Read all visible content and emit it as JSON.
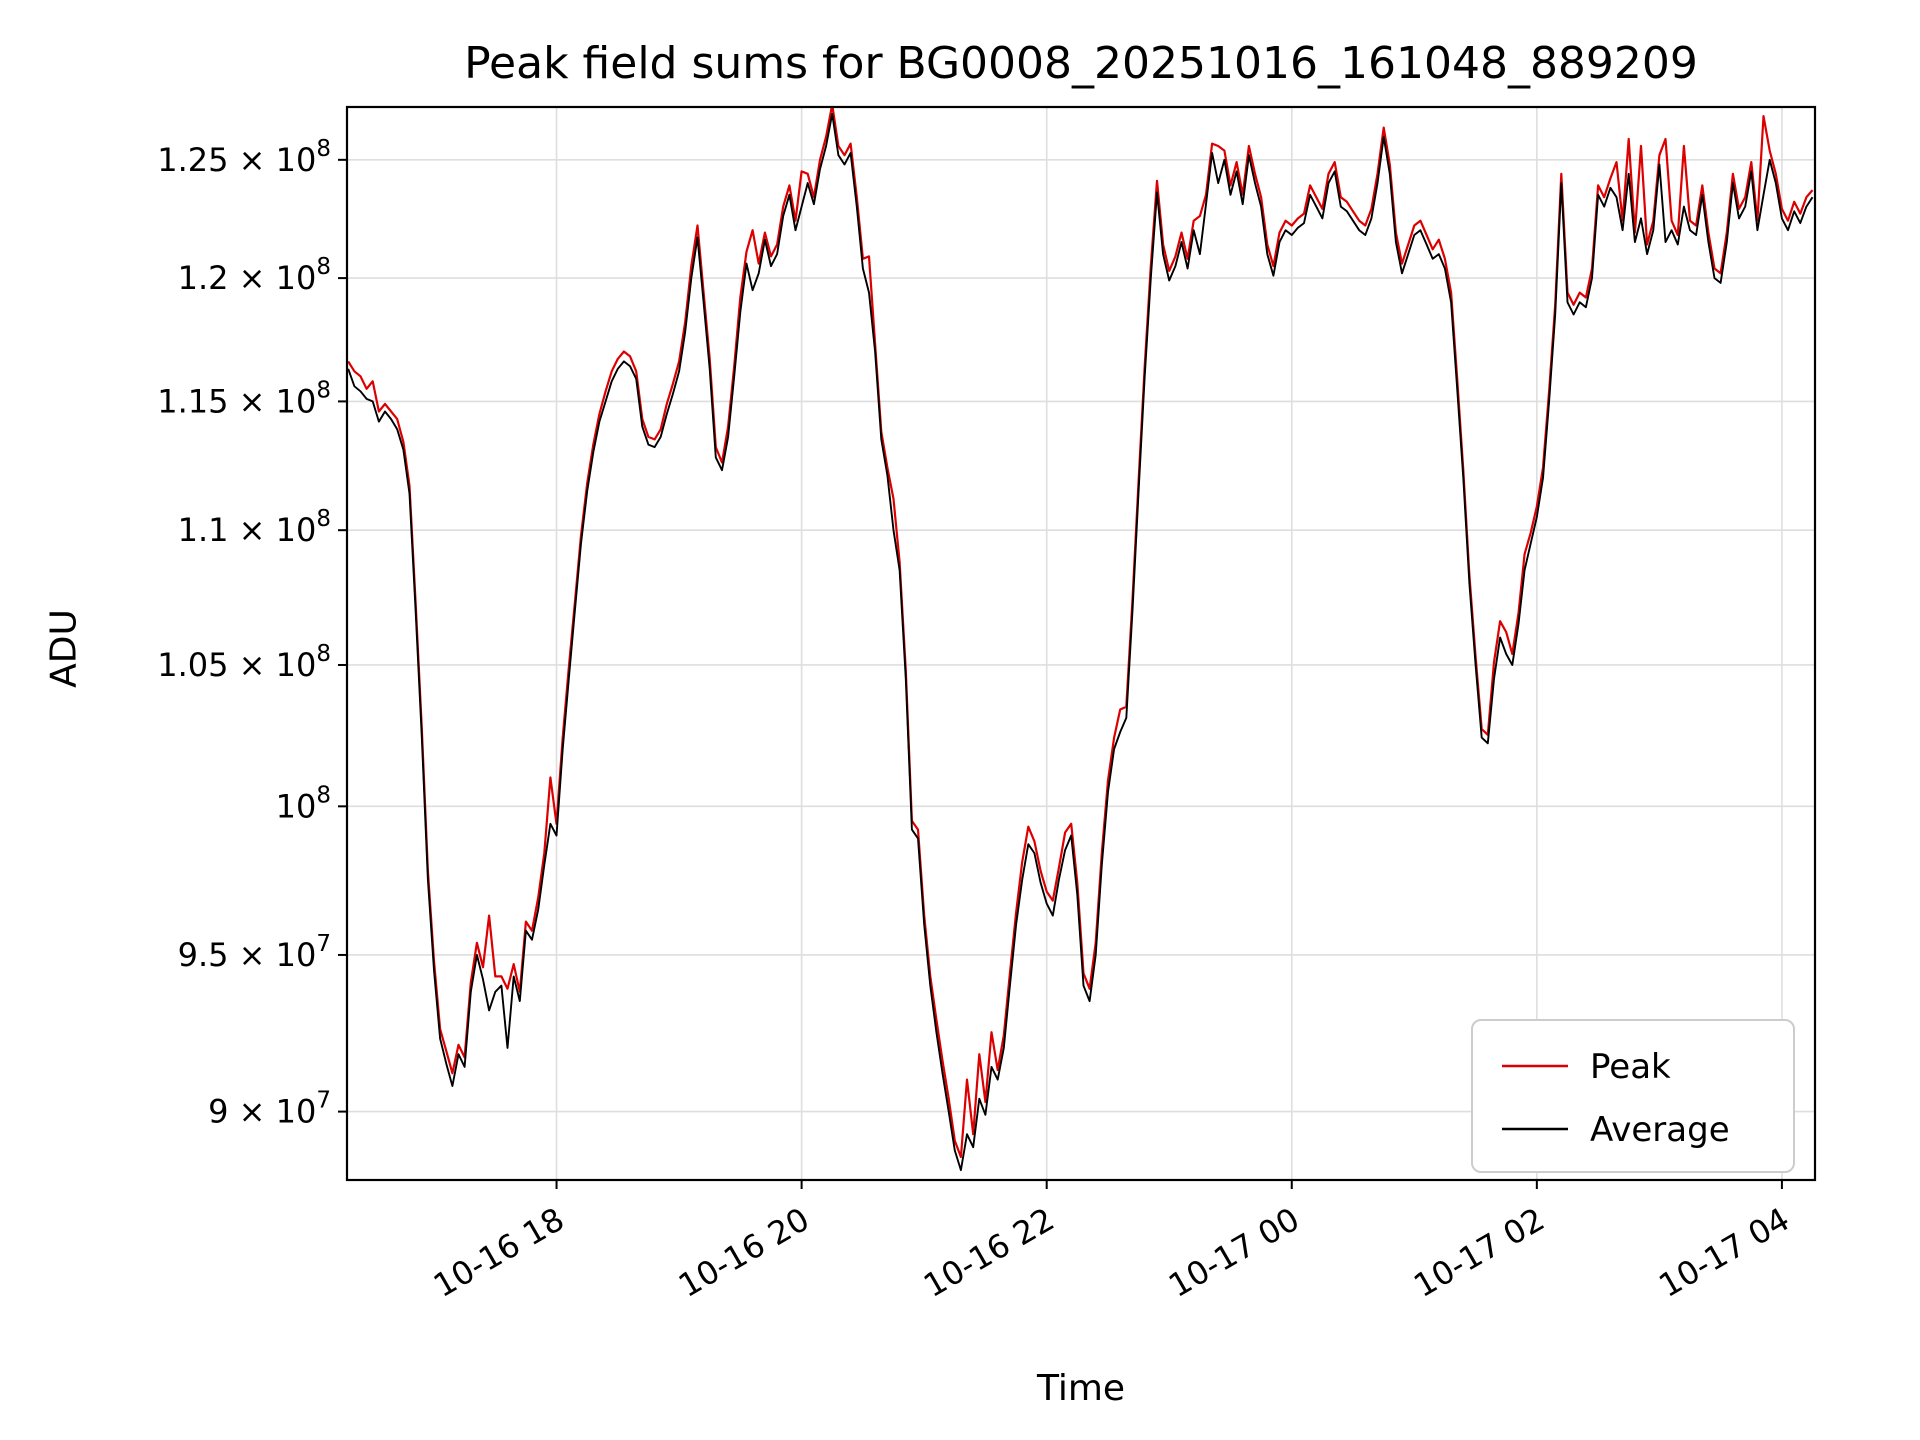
{
  "figure": {
    "title": "Peak field sums for BG0008_20251016_161048_889209",
    "xlabel": "Time",
    "ylabel": "ADU"
  },
  "colors": {
    "peak": "#dd0000",
    "average": "#000000",
    "grid": "#dedede",
    "spine": "#000000",
    "legend_border": "#cccccc",
    "background": "#ffffff"
  },
  "chart_data": {
    "type": "line",
    "title": "Peak field sums for BG0008_20251016_161048_889209",
    "xlabel": "Time",
    "ylabel": "ADU",
    "yscale": "log",
    "grid": true,
    "x_encoding": "hours since 10-16 00:00",
    "xlim_hours": [
      16.29,
      28.27
    ],
    "ylim": [
      87900000,
      127300000
    ],
    "x_ticks": [
      {
        "value": 18,
        "label": "10-16 18"
      },
      {
        "value": 20,
        "label": "10-16 20"
      },
      {
        "value": 22,
        "label": "10-16 22"
      },
      {
        "value": 24,
        "label": "10-17 00"
      },
      {
        "value": 26,
        "label": "10-17 02"
      },
      {
        "value": 28,
        "label": "10-17 04"
      }
    ],
    "y_ticks": [
      {
        "value": 90000000,
        "base": "9 × 10",
        "exp": "7"
      },
      {
        "value": 95000000,
        "base": "9.5 × 10",
        "exp": "7"
      },
      {
        "value": 100000000,
        "base": "10",
        "exp": "8"
      },
      {
        "value": 105000000,
        "base": "1.05 × 10",
        "exp": "8"
      },
      {
        "value": 110000000,
        "base": "1.1 × 10",
        "exp": "8"
      },
      {
        "value": 115000000,
        "base": "1.15 × 10",
        "exp": "8"
      },
      {
        "value": 120000000,
        "base": "1.2 × 10",
        "exp": "8"
      },
      {
        "value": 125000000,
        "base": "1.25 × 10",
        "exp": "8"
      }
    ],
    "legend": {
      "position": "lower right",
      "entries": [
        {
          "name": "Peak",
          "color": "#dd0000"
        },
        {
          "name": "Average",
          "color": "#000000"
        }
      ]
    },
    "value_scale": 1000000,
    "series_format": "[t_hours, average_MADU, peak_MADU]",
    "points": [
      [
        16.3,
        116.3,
        116.6
      ],
      [
        16.35,
        115.6,
        116.2
      ],
      [
        16.4,
        115.4,
        116.0
      ],
      [
        16.45,
        115.1,
        115.5
      ],
      [
        16.5,
        115.0,
        115.8
      ],
      [
        16.55,
        114.2,
        114.6
      ],
      [
        16.6,
        114.6,
        114.9
      ],
      [
        16.65,
        114.3,
        114.6
      ],
      [
        16.7,
        113.9,
        114.3
      ],
      [
        16.75,
        113.1,
        113.4
      ],
      [
        16.8,
        111.4,
        111.7
      ],
      [
        16.85,
        107.0,
        107.3
      ],
      [
        16.9,
        102.5,
        102.8
      ],
      [
        16.95,
        97.5,
        97.8
      ],
      [
        17.0,
        94.5,
        94.8
      ],
      [
        17.05,
        92.3,
        92.6
      ],
      [
        17.1,
        91.5,
        91.9
      ],
      [
        17.15,
        90.8,
        91.2
      ],
      [
        17.2,
        91.8,
        92.1
      ],
      [
        17.25,
        91.4,
        91.7
      ],
      [
        17.3,
        93.8,
        94.1
      ],
      [
        17.35,
        95.0,
        95.4
      ],
      [
        17.4,
        94.2,
        94.6
      ],
      [
        17.45,
        93.2,
        96.3
      ],
      [
        17.5,
        93.8,
        94.3
      ],
      [
        17.55,
        94.0,
        94.3
      ],
      [
        17.6,
        92.0,
        93.9
      ],
      [
        17.65,
        94.3,
        94.7
      ],
      [
        17.7,
        93.5,
        93.8
      ],
      [
        17.75,
        95.8,
        96.1
      ],
      [
        17.8,
        95.5,
        95.8
      ],
      [
        17.85,
        96.5,
        96.9
      ],
      [
        17.9,
        98.0,
        98.4
      ],
      [
        17.95,
        99.4,
        101.0
      ],
      [
        18.0,
        99.0,
        99.4
      ],
      [
        18.05,
        102.0,
        102.4
      ],
      [
        18.1,
        104.5,
        104.9
      ],
      [
        18.15,
        107.0,
        107.3
      ],
      [
        18.2,
        109.5,
        109.8
      ],
      [
        18.25,
        111.5,
        111.8
      ],
      [
        18.3,
        113.0,
        113.3
      ],
      [
        18.35,
        114.2,
        114.5
      ],
      [
        18.4,
        115.0,
        115.4
      ],
      [
        18.45,
        115.8,
        116.2
      ],
      [
        18.5,
        116.3,
        116.7
      ],
      [
        18.55,
        116.6,
        117.0
      ],
      [
        18.6,
        116.4,
        116.8
      ],
      [
        18.65,
        115.9,
        116.2
      ],
      [
        18.7,
        114.0,
        114.3
      ],
      [
        18.75,
        113.3,
        113.6
      ],
      [
        18.8,
        113.2,
        113.5
      ],
      [
        18.85,
        113.6,
        113.9
      ],
      [
        18.9,
        114.5,
        114.9
      ],
      [
        18.95,
        115.3,
        115.7
      ],
      [
        19.0,
        116.2,
        116.6
      ],
      [
        19.05,
        117.8,
        118.2
      ],
      [
        19.1,
        120.0,
        120.5
      ],
      [
        19.15,
        121.7,
        122.2
      ],
      [
        19.2,
        119.0,
        119.4
      ],
      [
        19.25,
        116.3,
        116.7
      ],
      [
        19.3,
        112.8,
        113.2
      ],
      [
        19.35,
        112.3,
        112.6
      ],
      [
        19.4,
        113.6,
        114.0
      ],
      [
        19.45,
        116.0,
        116.4
      ],
      [
        19.5,
        118.6,
        119.2
      ],
      [
        19.55,
        120.6,
        121.1
      ],
      [
        19.6,
        119.5,
        122.0
      ],
      [
        19.65,
        120.2,
        120.6
      ],
      [
        19.7,
        121.6,
        121.9
      ],
      [
        19.75,
        120.5,
        120.9
      ],
      [
        19.8,
        121.0,
        121.4
      ],
      [
        19.85,
        122.6,
        123.0
      ],
      [
        19.9,
        123.5,
        123.9
      ],
      [
        19.95,
        122.0,
        122.4
      ],
      [
        20.0,
        123.0,
        124.5
      ],
      [
        20.05,
        124.0,
        124.4
      ],
      [
        20.1,
        123.1,
        123.4
      ],
      [
        20.15,
        124.6,
        125.0
      ],
      [
        20.2,
        125.6,
        126.0
      ],
      [
        20.25,
        127.0,
        127.4
      ],
      [
        20.3,
        125.2,
        125.6
      ],
      [
        20.35,
        124.8,
        125.2
      ],
      [
        20.4,
        125.3,
        125.7
      ],
      [
        20.45,
        123.0,
        123.4
      ],
      [
        20.5,
        120.4,
        120.8
      ],
      [
        20.55,
        119.4,
        120.9
      ],
      [
        20.6,
        117.0,
        117.3
      ],
      [
        20.65,
        113.5,
        113.8
      ],
      [
        20.7,
        112.1,
        112.4
      ],
      [
        20.75,
        110.0,
        111.2
      ],
      [
        20.8,
        108.5,
        108.8
      ],
      [
        20.85,
        104.5,
        104.8
      ],
      [
        20.9,
        99.2,
        99.5
      ],
      [
        20.95,
        98.9,
        99.2
      ],
      [
        21.0,
        96.0,
        96.3
      ],
      [
        21.05,
        94.0,
        94.3
      ],
      [
        21.1,
        92.5,
        92.9
      ],
      [
        21.15,
        91.2,
        91.6
      ],
      [
        21.2,
        90.0,
        90.4
      ],
      [
        21.25,
        88.8,
        89.1
      ],
      [
        21.3,
        88.2,
        88.6
      ],
      [
        21.35,
        89.3,
        91.0
      ],
      [
        21.4,
        88.9,
        89.3
      ],
      [
        21.45,
        90.4,
        91.8
      ],
      [
        21.5,
        89.9,
        90.3
      ],
      [
        21.55,
        91.4,
        92.5
      ],
      [
        21.6,
        91.0,
        91.3
      ],
      [
        21.65,
        92.0,
        92.4
      ],
      [
        21.7,
        94.0,
        94.4
      ],
      [
        21.75,
        96.0,
        96.4
      ],
      [
        21.8,
        97.5,
        98.1
      ],
      [
        21.85,
        98.7,
        99.3
      ],
      [
        21.9,
        98.4,
        98.8
      ],
      [
        21.95,
        97.4,
        97.8
      ],
      [
        22.0,
        96.7,
        97.1
      ],
      [
        22.05,
        96.3,
        96.8
      ],
      [
        22.1,
        97.5,
        97.9
      ],
      [
        22.15,
        98.5,
        99.1
      ],
      [
        22.2,
        99.0,
        99.4
      ],
      [
        22.25,
        97.0,
        97.4
      ],
      [
        22.3,
        94.0,
        94.4
      ],
      [
        22.35,
        93.5,
        93.9
      ],
      [
        22.4,
        95.0,
        95.4
      ],
      [
        22.45,
        98.0,
        98.4
      ],
      [
        22.5,
        100.5,
        100.9
      ],
      [
        22.55,
        102.0,
        102.4
      ],
      [
        22.6,
        102.6,
        103.4
      ],
      [
        22.65,
        103.1,
        103.5
      ],
      [
        22.7,
        107.0,
        107.4
      ],
      [
        22.75,
        111.5,
        111.9
      ],
      [
        22.8,
        116.0,
        116.4
      ],
      [
        22.85,
        120.0,
        120.5
      ],
      [
        22.9,
        123.6,
        124.1
      ],
      [
        22.95,
        121.0,
        121.4
      ],
      [
        23.0,
        119.9,
        120.3
      ],
      [
        23.05,
        120.5,
        120.9
      ],
      [
        23.1,
        121.5,
        121.9
      ],
      [
        23.15,
        120.4,
        120.8
      ],
      [
        23.2,
        122.0,
        122.4
      ],
      [
        23.25,
        121.0,
        122.6
      ],
      [
        23.3,
        123.1,
        123.5
      ],
      [
        23.35,
        125.3,
        125.7
      ],
      [
        23.4,
        124.0,
        125.6
      ],
      [
        23.45,
        125.0,
        125.4
      ],
      [
        23.5,
        123.5,
        123.9
      ],
      [
        23.55,
        124.5,
        124.9
      ],
      [
        23.6,
        123.1,
        123.5
      ],
      [
        23.65,
        125.2,
        125.6
      ],
      [
        23.7,
        124.0,
        124.4
      ],
      [
        23.75,
        123.0,
        123.4
      ],
      [
        23.8,
        121.0,
        121.4
      ],
      [
        23.85,
        120.1,
        120.5
      ],
      [
        23.9,
        121.5,
        121.9
      ],
      [
        23.95,
        122.0,
        122.4
      ],
      [
        24.0,
        121.8,
        122.2
      ],
      [
        24.05,
        122.1,
        122.5
      ],
      [
        24.1,
        122.3,
        122.7
      ],
      [
        24.15,
        123.5,
        123.9
      ],
      [
        24.2,
        123.0,
        123.4
      ],
      [
        24.25,
        122.5,
        122.9
      ],
      [
        24.3,
        124.0,
        124.4
      ],
      [
        24.35,
        124.5,
        124.9
      ],
      [
        24.4,
        123.0,
        123.4
      ],
      [
        24.45,
        122.8,
        123.2
      ],
      [
        24.5,
        122.4,
        122.8
      ],
      [
        24.55,
        122.0,
        122.4
      ],
      [
        24.6,
        121.8,
        122.2
      ],
      [
        24.65,
        122.5,
        122.9
      ],
      [
        24.7,
        124.0,
        124.4
      ],
      [
        24.75,
        126.0,
        126.4
      ],
      [
        24.8,
        124.4,
        124.8
      ],
      [
        24.85,
        121.5,
        121.9
      ],
      [
        24.9,
        120.2,
        120.6
      ],
      [
        24.95,
        121.0,
        121.4
      ],
      [
        25.0,
        121.8,
        122.2
      ],
      [
        25.05,
        122.0,
        122.4
      ],
      [
        25.1,
        121.4,
        121.8
      ],
      [
        25.15,
        120.8,
        121.2
      ],
      [
        25.2,
        121.0,
        121.6
      ],
      [
        25.25,
        120.4,
        120.8
      ],
      [
        25.3,
        119.0,
        119.4
      ],
      [
        25.35,
        115.5,
        115.9
      ],
      [
        25.4,
        112.0,
        112.3
      ],
      [
        25.45,
        108.0,
        108.3
      ],
      [
        25.5,
        105.0,
        105.3
      ],
      [
        25.55,
        102.4,
        102.7
      ],
      [
        25.6,
        102.2,
        102.5
      ],
      [
        25.65,
        104.5,
        105.1
      ],
      [
        25.7,
        106.0,
        106.6
      ],
      [
        25.75,
        105.4,
        106.2
      ],
      [
        25.8,
        105.0,
        105.4
      ],
      [
        25.85,
        106.5,
        106.9
      ],
      [
        25.9,
        108.5,
        109.1
      ],
      [
        25.95,
        109.5,
        109.9
      ],
      [
        26.0,
        110.5,
        110.9
      ],
      [
        26.05,
        112.0,
        112.4
      ],
      [
        26.1,
        115.0,
        115.4
      ],
      [
        26.15,
        118.5,
        118.9
      ],
      [
        26.2,
        124.0,
        124.4
      ],
      [
        26.25,
        119.0,
        119.4
      ],
      [
        26.3,
        118.5,
        118.9
      ],
      [
        26.35,
        119.0,
        119.4
      ],
      [
        26.4,
        118.8,
        119.2
      ],
      [
        26.45,
        120.0,
        120.4
      ],
      [
        26.5,
        123.5,
        123.9
      ],
      [
        26.55,
        123.0,
        123.4
      ],
      [
        26.6,
        123.8,
        124.2
      ],
      [
        26.65,
        123.4,
        124.9
      ],
      [
        26.7,
        122.0,
        122.4
      ],
      [
        26.75,
        124.4,
        125.9
      ],
      [
        26.8,
        121.5,
        121.9
      ],
      [
        26.85,
        122.5,
        125.6
      ],
      [
        26.9,
        121.0,
        121.4
      ],
      [
        26.95,
        122.0,
        122.4
      ],
      [
        27.0,
        124.8,
        125.2
      ],
      [
        27.05,
        121.5,
        125.9
      ],
      [
        27.1,
        122.0,
        122.4
      ],
      [
        27.15,
        121.4,
        121.8
      ],
      [
        27.2,
        123.0,
        125.6
      ],
      [
        27.25,
        122.0,
        122.4
      ],
      [
        27.3,
        121.8,
        122.2
      ],
      [
        27.35,
        123.5,
        123.9
      ],
      [
        27.4,
        121.5,
        121.9
      ],
      [
        27.45,
        120.0,
        120.4
      ],
      [
        27.5,
        119.8,
        120.2
      ],
      [
        27.55,
        121.5,
        121.9
      ],
      [
        27.6,
        124.0,
        124.4
      ],
      [
        27.65,
        122.5,
        122.9
      ],
      [
        27.7,
        123.0,
        123.4
      ],
      [
        27.75,
        124.5,
        124.9
      ],
      [
        27.8,
        122.0,
        122.4
      ],
      [
        27.85,
        123.5,
        126.9
      ],
      [
        27.9,
        125.0,
        125.4
      ],
      [
        27.95,
        124.0,
        124.4
      ],
      [
        28.0,
        122.5,
        122.9
      ],
      [
        28.05,
        122.0,
        122.4
      ],
      [
        28.1,
        122.8,
        123.2
      ],
      [
        28.15,
        122.3,
        122.7
      ],
      [
        28.2,
        123.0,
        123.4
      ],
      [
        28.25,
        123.4,
        123.7
      ]
    ]
  }
}
